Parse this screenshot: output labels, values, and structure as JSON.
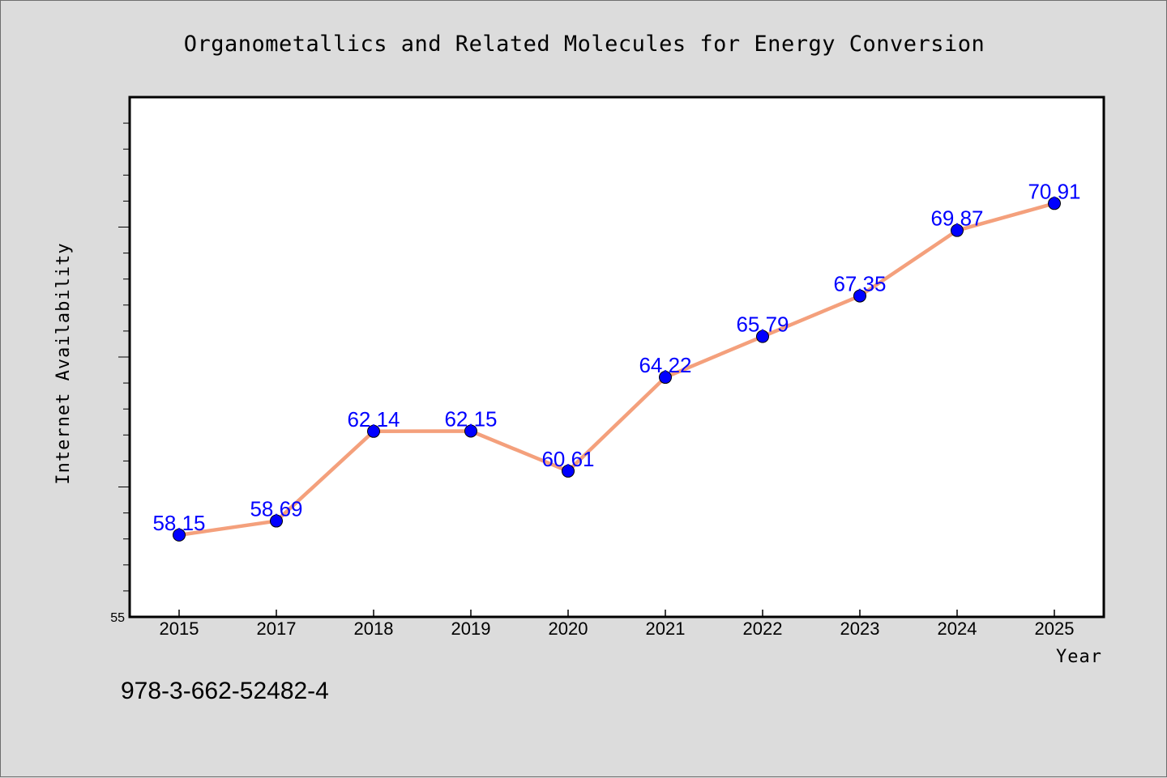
{
  "footer_text": "978-3-662-52482-4",
  "colors": {
    "background": "#dcdcdc",
    "plot_background": "#ffffff",
    "line": "#f4a07c",
    "marker": "#0000ff",
    "label": "#0000ff"
  },
  "chart_data": {
    "type": "line",
    "title": "Organometallics and Related Molecules for Energy Conversion",
    "xlabel": "Year",
    "ylabel": "Internet Availability",
    "categories": [
      "2015",
      "2017",
      "2018",
      "2019",
      "2020",
      "2021",
      "2022",
      "2023",
      "2024",
      "2025"
    ],
    "series": [
      {
        "values": [
          58.15,
          58.69,
          62.14,
          62.15,
          60.61,
          64.22,
          65.79,
          67.35,
          69.87,
          70.91
        ]
      }
    ],
    "y_tick_labels": [
      "55"
    ],
    "ylim": [
      55,
      75
    ],
    "grid": false,
    "markers": "circle",
    "data_labels": true
  }
}
